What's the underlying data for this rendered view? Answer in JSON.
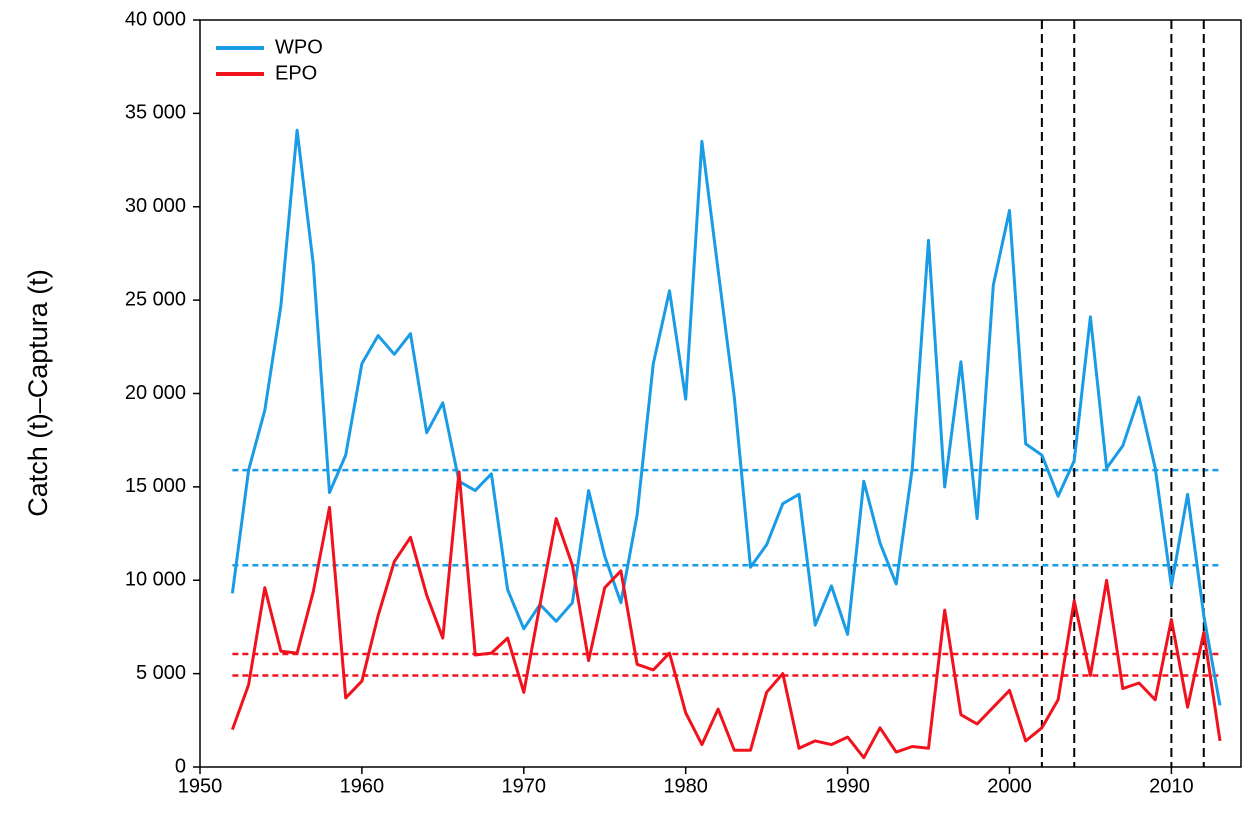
{
  "chart_data": {
    "type": "line",
    "y_label": "Catch (t)–Captura (t)",
    "x": [
      1952,
      1953,
      1954,
      1955,
      1956,
      1957,
      1958,
      1959,
      1960,
      1961,
      1962,
      1963,
      1964,
      1965,
      1966,
      1967,
      1968,
      1969,
      1970,
      1971,
      1972,
      1973,
      1974,
      1975,
      1976,
      1977,
      1978,
      1979,
      1980,
      1981,
      1982,
      1983,
      1984,
      1985,
      1986,
      1987,
      1988,
      1989,
      1990,
      1991,
      1992,
      1993,
      1994,
      1995,
      1996,
      1997,
      1998,
      1999,
      2000,
      2001,
      2002,
      2003,
      2004,
      2005,
      2006,
      2007,
      2008,
      2009,
      2010,
      2011,
      2012,
      2013
    ],
    "series": [
      {
        "name": "WPO",
        "color": "#1a9be6",
        "values": [
          9300,
          15900,
          19100,
          24700,
          34100,
          26900,
          14700,
          16700,
          21600,
          23100,
          22100,
          23200,
          17900,
          19500,
          15300,
          14800,
          15700,
          9500,
          7400,
          8700,
          7800,
          8800,
          14800,
          11300,
          8800,
          13500,
          21600,
          25500,
          19700,
          33500,
          26600,
          19800,
          10700,
          11900,
          14100,
          14600,
          7600,
          9700,
          7100,
          15300,
          12000,
          9800,
          16000,
          28200,
          15000,
          21700,
          13300,
          25800,
          29800,
          17300,
          16700,
          14500,
          16400,
          24100,
          16000,
          17200,
          19800,
          16000,
          9700,
          14600,
          8100,
          3300
        ]
      },
      {
        "name": "EPO",
        "color": "#f0131e",
        "values": [
          2000,
          4400,
          9600,
          6200,
          6100,
          9400,
          13900,
          3700,
          4600,
          8100,
          11000,
          12300,
          9200,
          6900,
          15800,
          6000,
          6100,
          6900,
          4000,
          8700,
          13300,
          10800,
          5700,
          9600,
          10500,
          5500,
          5200,
          6100,
          2900,
          1200,
          3100,
          900,
          900,
          4000,
          5000,
          1000,
          1400,
          1200,
          1600,
          500,
          2100,
          800,
          1100,
          1000,
          8400,
          2800,
          2300,
          3200,
          4100,
          1400,
          2100,
          3600,
          8900,
          4900,
          10000,
          4200,
          4500,
          3600,
          7900,
          3200,
          7200,
          1400
        ]
      }
    ],
    "hlines": [
      {
        "value": 15900,
        "color": "#1a9be6"
      },
      {
        "value": 10800,
        "color": "#1a9be6"
      },
      {
        "value": 6050,
        "color": "#f0131e"
      },
      {
        "value": 4900,
        "color": "#f0131e"
      }
    ],
    "vlines": [
      2002,
      2004,
      2010,
      2012
    ],
    "vline_color": "#000000",
    "xlim": [
      1950,
      2014.3
    ],
    "xticks": [
      1950,
      1960,
      1970,
      1980,
      1990,
      2000,
      2010
    ],
    "ylim": [
      0,
      40000
    ],
    "yticks": [
      0,
      {
        "value": 5000,
        "label": "5 000"
      },
      {
        "value": 10000,
        "label": "10 000"
      },
      {
        "value": 15000,
        "label": "15 000"
      },
      {
        "value": 20000,
        "label": "20 000"
      },
      {
        "value": 25000,
        "label": "25 000"
      },
      {
        "value": 30000,
        "label": "30 000"
      },
      {
        "value": 35000,
        "label": "35 000"
      },
      {
        "value": 40000,
        "label": "40 000"
      }
    ],
    "legend": "upper-left",
    "grid": false
  }
}
